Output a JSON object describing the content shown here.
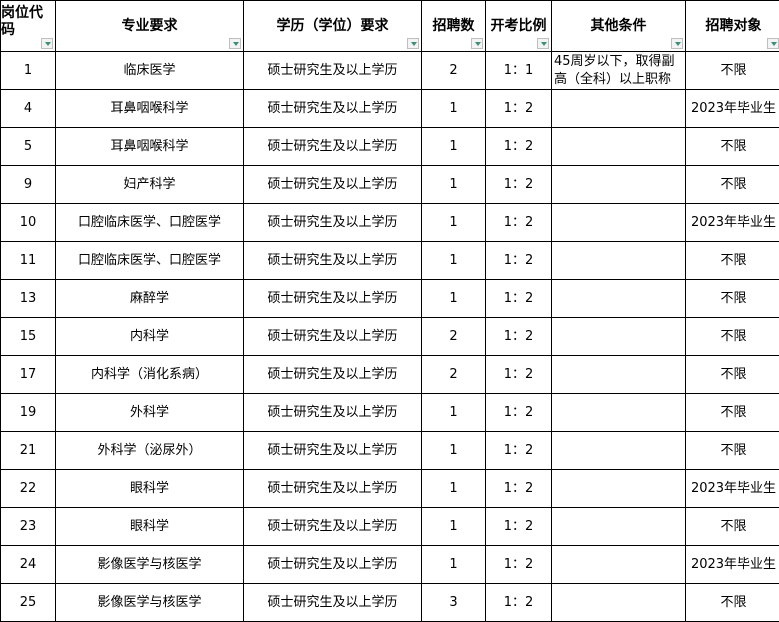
{
  "headers": [
    "岗位代码",
    "专业要求",
    "学历（学位）要求",
    "招聘数",
    "开考比例",
    "其他条件",
    "招聘对象"
  ],
  "rows": [
    {
      "code": "1",
      "major": "临床医学",
      "edu": "硕士研究生及以上学历",
      "count": "2",
      "ratio": "1：1",
      "other": "45周岁以下，取得副高（全科）以上职称",
      "target": "不限"
    },
    {
      "code": "4",
      "major": "耳鼻咽喉科学",
      "edu": "硕士研究生及以上学历",
      "count": "1",
      "ratio": "1：2",
      "other": "",
      "target": "2023年毕业生"
    },
    {
      "code": "5",
      "major": "耳鼻咽喉科学",
      "edu": "硕士研究生及以上学历",
      "count": "1",
      "ratio": "1：2",
      "other": "",
      "target": "不限"
    },
    {
      "code": "9",
      "major": "妇产科学",
      "edu": "硕士研究生及以上学历",
      "count": "1",
      "ratio": "1：2",
      "other": "",
      "target": "不限"
    },
    {
      "code": "10",
      "major": "口腔临床医学、口腔医学",
      "edu": "硕士研究生及以上学历",
      "count": "1",
      "ratio": "1：2",
      "other": "",
      "target": "2023年毕业生"
    },
    {
      "code": "11",
      "major": "口腔临床医学、口腔医学",
      "edu": "硕士研究生及以上学历",
      "count": "1",
      "ratio": "1：2",
      "other": "",
      "target": "不限"
    },
    {
      "code": "13",
      "major": "麻醉学",
      "edu": "硕士研究生及以上学历",
      "count": "1",
      "ratio": "1：2",
      "other": "",
      "target": "不限"
    },
    {
      "code": "15",
      "major": "内科学",
      "edu": "硕士研究生及以上学历",
      "count": "2",
      "ratio": "1：2",
      "other": "",
      "target": "不限"
    },
    {
      "code": "17",
      "major": "内科学（消化系病）",
      "edu": "硕士研究生及以上学历",
      "count": "2",
      "ratio": "1：2",
      "other": "",
      "target": "不限"
    },
    {
      "code": "19",
      "major": "外科学",
      "edu": "硕士研究生及以上学历",
      "count": "1",
      "ratio": "1：2",
      "other": "",
      "target": "不限"
    },
    {
      "code": "21",
      "major": "外科学（泌尿外）",
      "edu": "硕士研究生及以上学历",
      "count": "1",
      "ratio": "1：2",
      "other": "",
      "target": "不限"
    },
    {
      "code": "22",
      "major": "眼科学",
      "edu": "硕士研究生及以上学历",
      "count": "1",
      "ratio": "1：2",
      "other": "",
      "target": "2023年毕业生"
    },
    {
      "code": "23",
      "major": "眼科学",
      "edu": "硕士研究生及以上学历",
      "count": "1",
      "ratio": "1：2",
      "other": "",
      "target": "不限"
    },
    {
      "code": "24",
      "major": "影像医学与核医学",
      "edu": "硕士研究生及以上学历",
      "count": "1",
      "ratio": "1：2",
      "other": "",
      "target": "2023年毕业生"
    },
    {
      "code": "25",
      "major": "影像医学与核医学",
      "edu": "硕士研究生及以上学历",
      "count": "3",
      "ratio": "1：2",
      "other": "",
      "target": "不限"
    }
  ],
  "colors": {
    "border": "#000000",
    "filter_arrow": "#3a8f7a"
  }
}
